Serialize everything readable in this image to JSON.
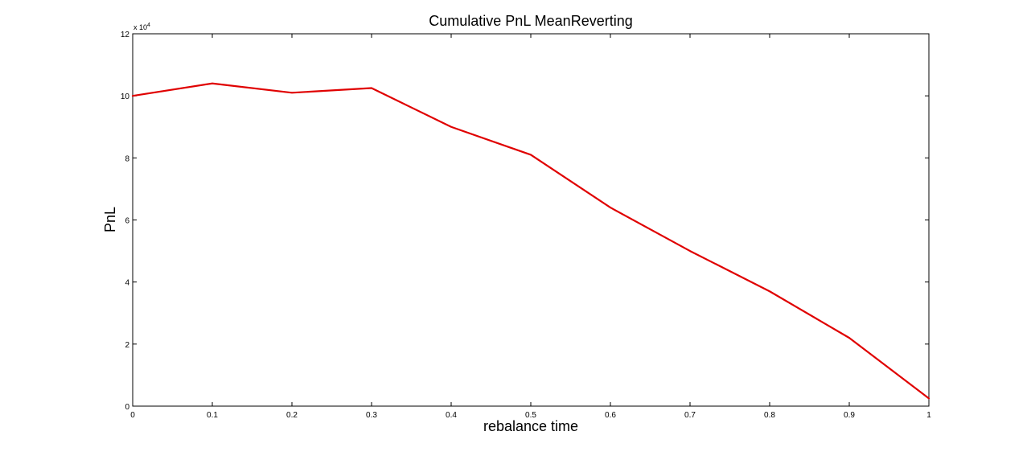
{
  "chart_data": {
    "type": "line",
    "title": "Cumulative PnL MeanReverting",
    "xlabel": "rebalance time",
    "ylabel": "PnL",
    "y_exponent_prefix": "x 10",
    "y_exponent_power": "4",
    "xlim": [
      0,
      1
    ],
    "ylim": [
      0,
      12
    ],
    "x_ticks": [
      "0",
      "0.1",
      "0.2",
      "0.3",
      "0.4",
      "0.5",
      "0.6",
      "0.7",
      "0.8",
      "0.9",
      "1"
    ],
    "y_ticks": [
      "0",
      "2",
      "4",
      "6",
      "8",
      "10",
      "12"
    ],
    "grid": false,
    "series": [
      {
        "color": "#e00000",
        "x": [
          0,
          0.1,
          0.2,
          0.3,
          0.4,
          0.5,
          0.6,
          0.7,
          0.8,
          0.9,
          1.0
        ],
        "y": [
          10.0,
          10.4,
          10.1,
          10.25,
          9.0,
          8.1,
          6.4,
          5.0,
          3.7,
          2.2,
          0.25
        ]
      }
    ]
  }
}
